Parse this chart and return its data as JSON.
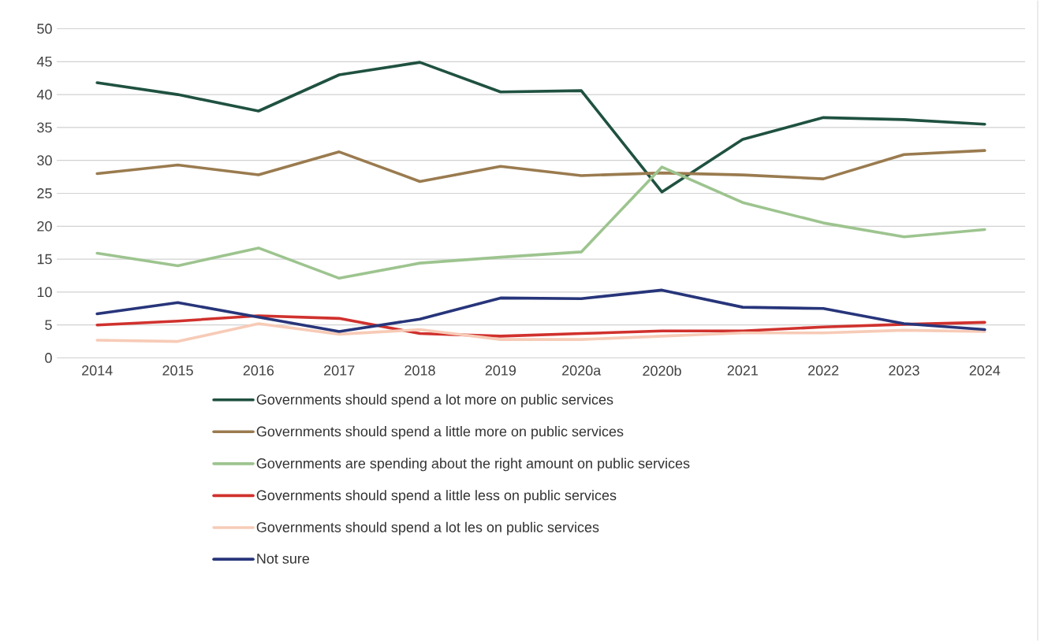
{
  "chart_data": {
    "type": "line",
    "categories": [
      "2014",
      "2015",
      "2016",
      "2017",
      "2018",
      "2019",
      "2020a",
      "2020b",
      "2021",
      "2022",
      "2023",
      "2024"
    ],
    "series": [
      {
        "name": "Governments should spend a lot more on public services",
        "color": "#1f5141",
        "values": [
          41.8,
          40,
          37.5,
          43,
          44.9,
          40.4,
          40.6,
          25.2,
          33.2,
          36.5,
          36.2,
          35.5
        ]
      },
      {
        "name": "Governments should spend a little more on public services",
        "color": "#9a7b4f",
        "values": [
          28,
          29.3,
          27.8,
          31.3,
          26.8,
          29.1,
          27.7,
          28.1,
          27.8,
          27.2,
          30.9,
          31.5
        ]
      },
      {
        "name": "Governments are spending about the right amount on public services",
        "color": "#9dc48f",
        "values": [
          15.9,
          14,
          16.7,
          12.1,
          14.4,
          15.3,
          16.1,
          29,
          23.6,
          20.5,
          18.4,
          19.5
        ]
      },
      {
        "name": "Governments should spend a little less on public services",
        "color": "#d0312d",
        "values": [
          5,
          5.6,
          6.4,
          6,
          3.7,
          3.3,
          3.7,
          4.1,
          4.1,
          4.7,
          5.1,
          5.4
        ]
      },
      {
        "name": "Governments should spend a lot les on public services",
        "color": "#f7cbb7",
        "values": [
          2.7,
          2.5,
          5.2,
          3.6,
          4.3,
          2.8,
          2.8,
          3.3,
          3.8,
          3.8,
          4.2,
          4.0
        ]
      },
      {
        "name": "Not sure",
        "color": "#27357a",
        "values": [
          6.7,
          8.4,
          6.2,
          4.0,
          5.9,
          9.1,
          9.0,
          10.3,
          7.7,
          7.5,
          5.2,
          4.3
        ]
      }
    ],
    "ylim": [
      0,
      50
    ],
    "yticks": [
      0,
      5,
      10,
      15,
      20,
      25,
      30,
      35,
      40,
      45,
      50
    ],
    "grid": "y",
    "legend": "bottom",
    "marker": "none",
    "line_style": "solid"
  }
}
